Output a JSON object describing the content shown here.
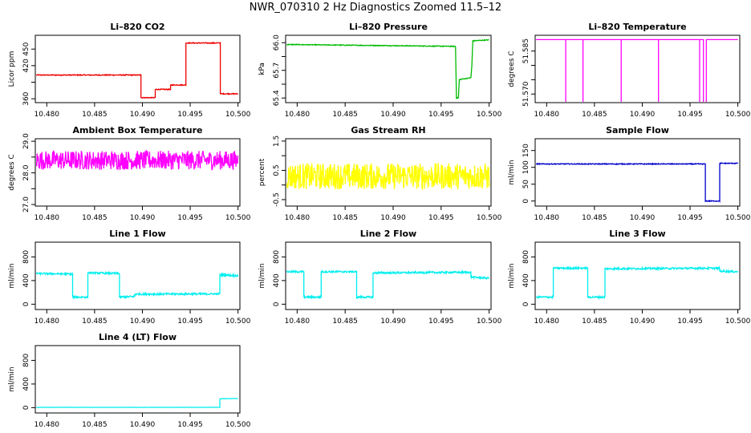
{
  "title": "NWR_070310  2 Hz Diagnostics Zoomed 11.5–12",
  "x_axis": {
    "range": [
      10.4788,
      10.5002
    ],
    "ticks": [
      10.48,
      10.485,
      10.49,
      10.495,
      10.5
    ],
    "tick_labels": [
      "10.480",
      "10.485",
      "10.490",
      "10.495",
      "10.500"
    ]
  },
  "chart_data": [
    {
      "id": "co2",
      "type": "line",
      "title": "Li–820 CO2",
      "ylabel": "Licor ppm",
      "color": "#ee0000",
      "ylim": [
        353,
        475
      ],
      "yticks": [
        360,
        390,
        420,
        450
      ],
      "ytick_labels": [
        "360",
        "",
        "420",
        "450"
      ],
      "noise": 0.8,
      "x": [
        10.4789,
        10.48985,
        10.48985,
        10.49135,
        10.49135,
        10.49295,
        10.49295,
        10.49455,
        10.49455,
        10.49815,
        10.49815,
        10.5
      ],
      "y": [
        403,
        403,
        362,
        362,
        377,
        377,
        385,
        385,
        461,
        461,
        369,
        369
      ]
    },
    {
      "id": "pressure",
      "type": "line",
      "title": "Li–820 Pressure",
      "ylabel": "kPa",
      "color": "#00bb00",
      "ylim": [
        65.35,
        66.08
      ],
      "yticks": [
        65.4,
        65.55,
        65.7,
        65.85,
        66.0
      ],
      "ytick_labels": [
        "65.4",
        "",
        "65.7",
        "",
        "66.0"
      ],
      "noise": 0.004,
      "x": [
        10.4789,
        10.4965,
        10.4966,
        10.4968,
        10.4969,
        10.4981,
        10.4982,
        10.4983,
        10.5
      ],
      "y": [
        65.98,
        65.96,
        65.4,
        65.4,
        65.6,
        65.62,
        65.75,
        66.02,
        66.03
      ]
    },
    {
      "id": "licor-temp",
      "type": "line",
      "title": "Li–820 Temperature",
      "ylabel": "degrees C",
      "color": "#ff00ff",
      "ylim": [
        51.567,
        51.5905
      ],
      "yticks": [
        51.57,
        51.575,
        51.58,
        51.585
      ],
      "ytick_labels": [
        "51.570",
        "",
        "",
        "51.585"
      ],
      "noise": 0,
      "x": [
        10.4789,
        10.482,
        10.482,
        10.482,
        10.4838,
        10.4838,
        10.4838,
        10.4878,
        10.4878,
        10.4878,
        10.4917,
        10.4917,
        10.4917,
        10.496,
        10.496,
        10.496,
        10.4964,
        10.4964,
        10.4967,
        10.4967,
        10.5
      ],
      "y": [
        51.589,
        51.589,
        51.5665,
        51.589,
        51.589,
        51.5665,
        51.589,
        51.589,
        51.5665,
        51.589,
        51.589,
        51.5665,
        51.589,
        51.589,
        51.5665,
        51.589,
        51.589,
        51.5665,
        51.5665,
        51.589,
        51.589
      ]
    },
    {
      "id": "ambient-temp",
      "type": "line",
      "title": "Ambient Box Temperature",
      "ylabel": "degrees C",
      "color": "#ff00ff",
      "ylim": [
        26.95,
        29.08
      ],
      "yticks": [
        27.0,
        27.5,
        28.0,
        28.5,
        29.0
      ],
      "ytick_labels": [
        "27.0",
        "",
        "28.0",
        "",
        "29.0"
      ],
      "noise": 0.3,
      "x": [
        10.4789,
        10.5
      ],
      "y": [
        28.4,
        28.4
      ]
    },
    {
      "id": "rh",
      "type": "line",
      "title": "Gas Stream RH",
      "ylabel": "percent",
      "color": "#ffff00",
      "ylim": [
        -0.72,
        1.58
      ],
      "yticks": [
        -0.5,
        0.0,
        0.5,
        1.0,
        1.5
      ],
      "ytick_labels": [
        "-0.5",
        "",
        "0.5",
        "",
        "1.5"
      ],
      "noise": 0.45,
      "x": [
        10.4789,
        10.5
      ],
      "y": [
        0.3,
        0.3
      ]
    },
    {
      "id": "sample-flow",
      "type": "line",
      "title": "Sample Flow",
      "ylabel": "ml/min",
      "color": "#0000cc",
      "ylim": [
        -15,
        185
      ],
      "yticks": [
        0,
        50,
        100,
        150
      ],
      "ytick_labels": [
        "0",
        "50",
        "100",
        "150"
      ],
      "noise": 1.2,
      "x": [
        10.4789,
        10.4966,
        10.4966,
        10.4981,
        10.4981,
        10.5
      ],
      "y": [
        110,
        110,
        0,
        0,
        112,
        112
      ]
    },
    {
      "id": "line1",
      "type": "line",
      "title": "Line 1 Flow",
      "ylabel": "ml/min",
      "color": "#00eeee",
      "ylim": [
        -90,
        1050
      ],
      "yticks": [
        0,
        400,
        800
      ],
      "ytick_labels": [
        "0",
        "400",
        "800"
      ],
      "noise": 15,
      "x": [
        10.4789,
        10.4827,
        10.4827,
        10.4843,
        10.4843,
        10.4876,
        10.4876,
        10.4892,
        10.4892,
        10.4981,
        10.4981,
        10.5
      ],
      "y": [
        520,
        510,
        120,
        120,
        530,
        520,
        120,
        130,
        170,
        175,
        500,
        480
      ]
    },
    {
      "id": "line2",
      "type": "line",
      "title": "Line 2 Flow",
      "ylabel": "ml/min",
      "color": "#00eeee",
      "ylim": [
        -90,
        1050
      ],
      "yticks": [
        0,
        400,
        800
      ],
      "ytick_labels": [
        "0",
        "400",
        "800"
      ],
      "noise": 15,
      "x": [
        10.4789,
        10.4807,
        10.4807,
        10.4825,
        10.4825,
        10.4862,
        10.4862,
        10.4879,
        10.4879,
        10.4981,
        10.4981,
        10.5
      ],
      "y": [
        550,
        550,
        120,
        120,
        550,
        550,
        120,
        120,
        530,
        540,
        460,
        440
      ]
    },
    {
      "id": "line3",
      "type": "line",
      "title": "Line 3 Flow",
      "ylabel": "ml/min",
      "color": "#00eeee",
      "ylim": [
        -90,
        1050
      ],
      "yticks": [
        0,
        400,
        800
      ],
      "ytick_labels": [
        "0",
        "400",
        "800"
      ],
      "noise": 15,
      "x": [
        10.4789,
        10.4807,
        10.4807,
        10.4843,
        10.4843,
        10.4861,
        10.4861,
        10.4981,
        10.4981,
        10.5
      ],
      "y": [
        120,
        120,
        610,
        610,
        120,
        120,
        600,
        610,
        560,
        550
      ]
    },
    {
      "id": "line4",
      "type": "line",
      "title": "Line 4 (LT) Flow",
      "ylabel": "ml/min",
      "color": "#00eeee",
      "ylim": [
        -90,
        1050
      ],
      "yticks": [
        0,
        400,
        800
      ],
      "ytick_labels": [
        "0",
        "400",
        "800"
      ],
      "noise": 1.5,
      "x": [
        10.4789,
        10.4981,
        10.4981,
        10.5
      ],
      "y": [
        5,
        5,
        150,
        155
      ]
    }
  ]
}
